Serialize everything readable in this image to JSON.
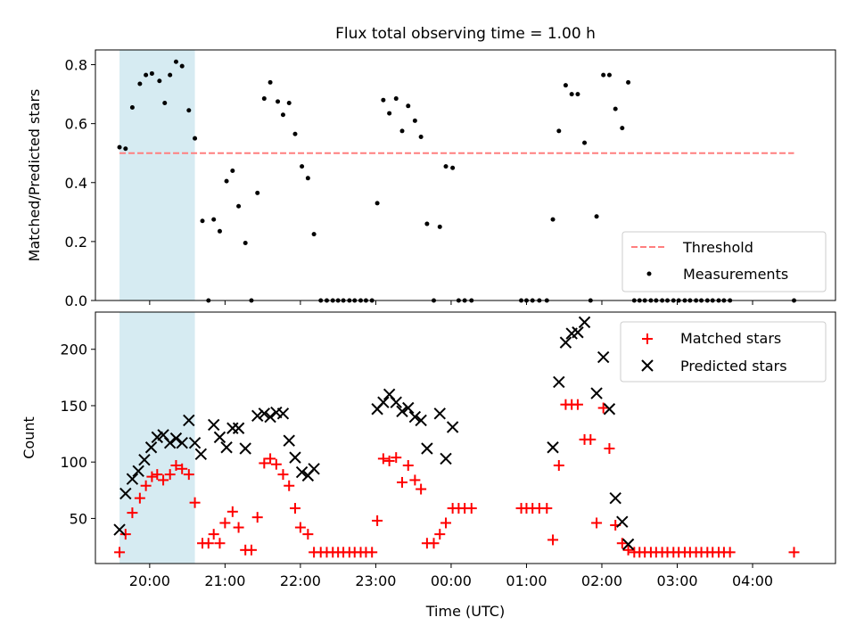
{
  "title": "Flux total observing time = 1.00 h",
  "xlabel": "Time (UTC)",
  "x_tick_labels": [
    "20:00",
    "21:00",
    "22:00",
    "23:00",
    "00:00",
    "01:00",
    "02:00",
    "03:00",
    "04:00"
  ],
  "colors": {
    "threshold": "#ff7f7f",
    "span": "#add8e6",
    "matched": "#ff0000",
    "predicted": "#000000",
    "measurements": "#000000"
  },
  "chart_data": [
    {
      "type": "scatter",
      "ylabel": "Matched/Predicted stars",
      "ylim": [
        0,
        0.85
      ],
      "xlim_hours": [
        19.28,
        29.1
      ],
      "x_units": "hours since 00:00 UTC of first day (24+ = next day)",
      "yticks": [
        0.0,
        0.2,
        0.4,
        0.6,
        0.8
      ],
      "ytick_labels": [
        "0.0",
        "0.2",
        "0.4",
        "0.6",
        "0.8"
      ],
      "highlight_span": [
        19.6,
        20.6
      ],
      "threshold": {
        "label": "Threshold",
        "y": 0.5,
        "x_range": [
          19.6,
          28.55
        ]
      },
      "legend": {
        "position": "lower right",
        "entries": [
          "Threshold",
          "Measurements"
        ]
      },
      "series": [
        {
          "name": "Measurements",
          "points": [
            [
              19.6,
              0.52
            ],
            [
              19.68,
              0.515
            ],
            [
              19.77,
              0.655
            ],
            [
              19.87,
              0.735
            ],
            [
              19.95,
              0.765
            ],
            [
              20.03,
              0.77
            ],
            [
              20.13,
              0.745
            ],
            [
              20.2,
              0.67
            ],
            [
              20.27,
              0.765
            ],
            [
              20.35,
              0.81
            ],
            [
              20.43,
              0.795
            ],
            [
              20.52,
              0.645
            ],
            [
              20.6,
              0.55
            ],
            [
              20.7,
              0.27
            ],
            [
              20.78,
              0.0
            ],
            [
              20.85,
              0.275
            ],
            [
              20.93,
              0.235
            ],
            [
              21.02,
              0.405
            ],
            [
              21.1,
              0.44
            ],
            [
              21.18,
              0.32
            ],
            [
              21.27,
              0.195
            ],
            [
              21.35,
              0.0
            ],
            [
              21.43,
              0.365
            ],
            [
              21.52,
              0.685
            ],
            [
              21.6,
              0.74
            ],
            [
              21.7,
              0.675
            ],
            [
              21.77,
              0.63
            ],
            [
              21.85,
              0.67
            ],
            [
              21.93,
              0.565
            ],
            [
              22.02,
              0.455
            ],
            [
              22.1,
              0.415
            ],
            [
              22.18,
              0.225
            ],
            [
              22.27,
              0.0
            ],
            [
              22.35,
              0.0
            ],
            [
              22.43,
              0.0
            ],
            [
              22.5,
              0.0
            ],
            [
              22.57,
              0.0
            ],
            [
              22.65,
              0.0
            ],
            [
              22.72,
              0.0
            ],
            [
              22.8,
              0.0
            ],
            [
              22.87,
              0.0
            ],
            [
              22.95,
              0.0
            ],
            [
              23.02,
              0.33
            ],
            [
              23.1,
              0.68
            ],
            [
              23.18,
              0.635
            ],
            [
              23.27,
              0.685
            ],
            [
              23.35,
              0.575
            ],
            [
              23.43,
              0.66
            ],
            [
              23.52,
              0.61
            ],
            [
              23.6,
              0.555
            ],
            [
              23.68,
              0.26
            ],
            [
              23.77,
              0.0
            ],
            [
              23.85,
              0.25
            ],
            [
              23.93,
              0.455
            ],
            [
              24.02,
              0.45
            ],
            [
              24.1,
              0.0
            ],
            [
              24.18,
              0.0
            ],
            [
              24.27,
              0.0
            ],
            [
              24.93,
              0.0
            ],
            [
              25.0,
              0.0
            ],
            [
              25.08,
              0.0
            ],
            [
              25.17,
              0.0
            ],
            [
              25.27,
              0.0
            ],
            [
              25.35,
              0.275
            ],
            [
              25.43,
              0.575
            ],
            [
              25.52,
              0.73
            ],
            [
              25.6,
              0.7
            ],
            [
              25.68,
              0.7
            ],
            [
              25.77,
              0.535
            ],
            [
              25.85,
              0.0
            ],
            [
              25.93,
              0.285
            ],
            [
              26.02,
              0.765
            ],
            [
              26.1,
              0.765
            ],
            [
              26.18,
              0.65
            ],
            [
              26.27,
              0.585
            ],
            [
              26.35,
              0.74
            ],
            [
              26.43,
              0.0
            ],
            [
              26.5,
              0.0
            ],
            [
              26.57,
              0.0
            ],
            [
              26.65,
              0.0
            ],
            [
              26.72,
              0.0
            ],
            [
              26.8,
              0.0
            ],
            [
              26.87,
              0.0
            ],
            [
              26.95,
              0.0
            ],
            [
              27.02,
              0.0
            ],
            [
              27.1,
              0.0
            ],
            [
              27.17,
              0.0
            ],
            [
              27.25,
              0.0
            ],
            [
              27.32,
              0.0
            ],
            [
              27.4,
              0.0
            ],
            [
              27.47,
              0.0
            ],
            [
              27.55,
              0.0
            ],
            [
              27.62,
              0.0
            ],
            [
              27.7,
              0.0
            ],
            [
              28.55,
              0.0
            ]
          ]
        }
      ]
    },
    {
      "type": "scatter",
      "ylabel": "Count",
      "ylim": [
        10,
        233
      ],
      "xlim_hours": [
        19.28,
        29.1
      ],
      "yticks": [
        50,
        100,
        150,
        200
      ],
      "ytick_labels": [
        "50",
        "100",
        "150",
        "200"
      ],
      "highlight_span": [
        19.6,
        20.6
      ],
      "legend": {
        "position": "upper right",
        "entries": [
          "Matched stars",
          "Predicted stars"
        ]
      },
      "series": [
        {
          "name": "Matched stars",
          "marker": "plus",
          "points": [
            [
              19.6,
              20
            ],
            [
              19.68,
              36
            ],
            [
              19.77,
              55
            ],
            [
              19.87,
              68
            ],
            [
              19.95,
              79
            ],
            [
              20.03,
              87
            ],
            [
              20.1,
              89
            ],
            [
              20.18,
              84
            ],
            [
              20.27,
              89
            ],
            [
              20.35,
              97
            ],
            [
              20.43,
              94
            ],
            [
              20.52,
              89
            ],
            [
              20.6,
              64
            ],
            [
              20.7,
              28
            ],
            [
              20.78,
              28
            ],
            [
              20.85,
              36
            ],
            [
              20.93,
              28
            ],
            [
              21.0,
              46
            ],
            [
              21.1,
              56
            ],
            [
              21.18,
              42
            ],
            [
              21.27,
              22
            ],
            [
              21.35,
              22
            ],
            [
              21.43,
              51
            ],
            [
              21.52,
              99
            ],
            [
              21.6,
              103
            ],
            [
              21.68,
              98
            ],
            [
              21.77,
              89
            ],
            [
              21.85,
              79
            ],
            [
              21.93,
              59
            ],
            [
              22.0,
              42
            ],
            [
              22.1,
              36
            ],
            [
              22.18,
              20
            ],
            [
              22.27,
              20
            ],
            [
              22.35,
              20
            ],
            [
              22.43,
              20
            ],
            [
              22.5,
              20
            ],
            [
              22.57,
              20
            ],
            [
              22.65,
              20
            ],
            [
              22.72,
              20
            ],
            [
              22.8,
              20
            ],
            [
              22.87,
              20
            ],
            [
              22.95,
              20
            ],
            [
              23.02,
              48
            ],
            [
              23.1,
              103
            ],
            [
              23.18,
              101
            ],
            [
              23.27,
              104
            ],
            [
              23.35,
              82
            ],
            [
              23.43,
              97
            ],
            [
              23.52,
              84
            ],
            [
              23.6,
              76
            ],
            [
              23.68,
              28
            ],
            [
              23.77,
              28
            ],
            [
              23.85,
              36
            ],
            [
              23.93,
              46
            ],
            [
              24.02,
              59
            ],
            [
              24.1,
              59
            ],
            [
              24.18,
              59
            ],
            [
              24.27,
              59
            ],
            [
              24.93,
              59
            ],
            [
              25.0,
              59
            ],
            [
              25.08,
              59
            ],
            [
              25.17,
              59
            ],
            [
              25.27,
              59
            ],
            [
              25.35,
              31
            ],
            [
              25.43,
              97
            ],
            [
              25.52,
              151
            ],
            [
              25.6,
              151
            ],
            [
              25.68,
              151
            ],
            [
              25.77,
              120
            ],
            [
              25.85,
              120
            ],
            [
              25.93,
              46
            ],
            [
              26.02,
              148
            ],
            [
              26.1,
              112
            ],
            [
              26.18,
              44
            ],
            [
              26.27,
              28
            ],
            [
              26.35,
              22
            ],
            [
              26.43,
              20
            ],
            [
              26.5,
              20
            ],
            [
              26.57,
              20
            ],
            [
              26.65,
              20
            ],
            [
              26.72,
              20
            ],
            [
              26.8,
              20
            ],
            [
              26.87,
              20
            ],
            [
              26.95,
              20
            ],
            [
              27.02,
              20
            ],
            [
              27.1,
              20
            ],
            [
              27.17,
              20
            ],
            [
              27.25,
              20
            ],
            [
              27.32,
              20
            ],
            [
              27.4,
              20
            ],
            [
              27.47,
              20
            ],
            [
              27.55,
              20
            ],
            [
              27.62,
              20
            ],
            [
              27.7,
              20
            ],
            [
              28.55,
              20
            ]
          ]
        },
        {
          "name": "Predicted stars",
          "marker": "x",
          "points": [
            [
              19.6,
              40
            ],
            [
              19.68,
              72
            ],
            [
              19.77,
              85
            ],
            [
              19.85,
              92
            ],
            [
              19.93,
              102
            ],
            [
              20.02,
              113
            ],
            [
              20.1,
              122
            ],
            [
              20.18,
              124
            ],
            [
              20.27,
              117
            ],
            [
              20.35,
              121
            ],
            [
              20.43,
              117
            ],
            [
              20.52,
              137
            ],
            [
              20.6,
              117
            ],
            [
              20.68,
              107
            ],
            [
              20.85,
              133
            ],
            [
              20.93,
              122
            ],
            [
              21.02,
              113
            ],
            [
              21.1,
              130
            ],
            [
              21.18,
              130
            ],
            [
              21.27,
              112
            ],
            [
              21.43,
              141
            ],
            [
              21.52,
              143
            ],
            [
              21.6,
              140
            ],
            [
              21.68,
              144
            ],
            [
              21.77,
              143
            ],
            [
              21.85,
              119
            ],
            [
              21.93,
              104
            ],
            [
              22.02,
              91
            ],
            [
              22.1,
              88
            ],
            [
              22.18,
              94
            ],
            [
              23.02,
              147
            ],
            [
              23.1,
              153
            ],
            [
              23.18,
              160
            ],
            [
              23.27,
              153
            ],
            [
              23.35,
              145
            ],
            [
              23.43,
              148
            ],
            [
              23.52,
              140
            ],
            [
              23.6,
              137
            ],
            [
              23.68,
              112
            ],
            [
              23.85,
              143
            ],
            [
              23.93,
              103
            ],
            [
              24.02,
              131
            ],
            [
              25.35,
              113
            ],
            [
              25.43,
              171
            ],
            [
              25.52,
              206
            ],
            [
              25.6,
              214
            ],
            [
              25.68,
              215
            ],
            [
              25.77,
              224
            ],
            [
              25.93,
              161
            ],
            [
              26.02,
              193
            ],
            [
              26.1,
              147
            ],
            [
              26.18,
              68
            ],
            [
              26.27,
              47
            ],
            [
              26.35,
              27
            ]
          ]
        }
      ]
    }
  ]
}
